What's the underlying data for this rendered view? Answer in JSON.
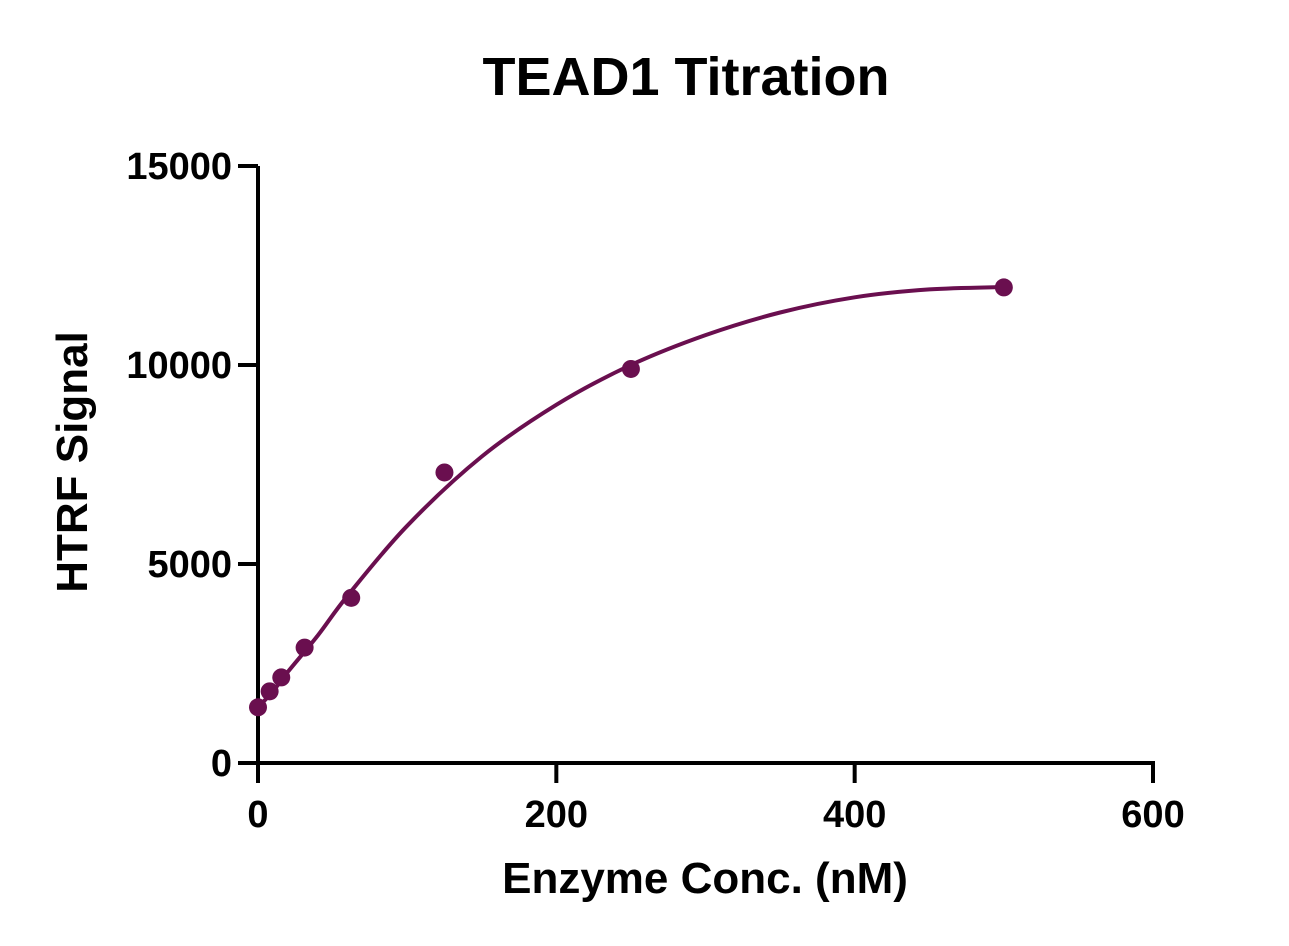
{
  "chart_data": {
    "type": "scatter",
    "title": "TEAD1 Titration",
    "xlabel": "Enzyme Conc. (nM)",
    "ylabel": "HTRF Signal",
    "xlim": [
      0,
      600
    ],
    "ylim": [
      0,
      15000
    ],
    "xticks": [
      0,
      200,
      400,
      600
    ],
    "yticks": [
      0,
      5000,
      10000,
      15000
    ],
    "xtick_labels": [
      "0",
      "200",
      "400",
      "600"
    ],
    "ytick_labels": [
      "0",
      "5000",
      "10000",
      "15000"
    ],
    "grid": false,
    "legend": "none",
    "series": [
      {
        "color": "#6a0f4f",
        "points": [
          {
            "x": 0,
            "y": 1400
          },
          {
            "x": 7.8,
            "y": 1800
          },
          {
            "x": 15.6,
            "y": 2150
          },
          {
            "x": 31.25,
            "y": 2900
          },
          {
            "x": 62.5,
            "y": 4150
          },
          {
            "x": 125,
            "y": 7300
          },
          {
            "x": 250,
            "y": 9900
          },
          {
            "x": 500,
            "y": 11950
          }
        ],
        "fit_curve": [
          {
            "x": 0,
            "y": 1400
          },
          {
            "x": 10,
            "y": 1800
          },
          {
            "x": 20,
            "y": 2290
          },
          {
            "x": 40,
            "y": 3200
          },
          {
            "x": 60,
            "y": 4200
          },
          {
            "x": 100,
            "y": 5960
          },
          {
            "x": 150,
            "y": 7700
          },
          {
            "x": 200,
            "y": 9000
          },
          {
            "x": 250,
            "y": 10000
          },
          {
            "x": 300,
            "y": 10750
          },
          {
            "x": 350,
            "y": 11320
          },
          {
            "x": 400,
            "y": 11700
          },
          {
            "x": 450,
            "y": 11900
          },
          {
            "x": 500,
            "y": 11960
          }
        ]
      }
    ]
  }
}
